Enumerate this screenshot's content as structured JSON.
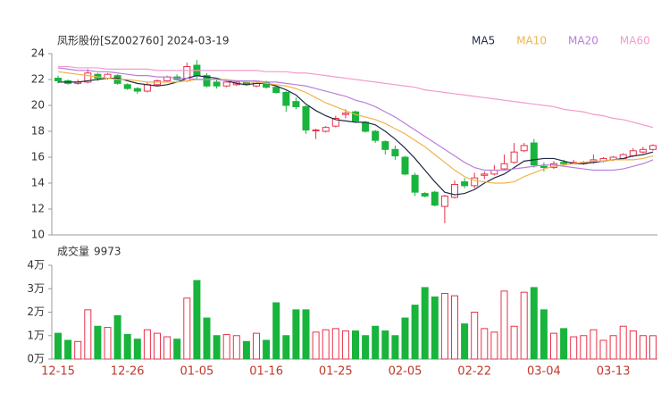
{
  "chart_data": {
    "type": "candlestick",
    "title": "凤形股份[SZ002760] 2024-03-19",
    "volume_label": "成交量",
    "categories": [
      "12-15",
      null,
      null,
      null,
      null,
      null,
      null,
      "12-26",
      null,
      null,
      null,
      null,
      null,
      null,
      "01-05",
      null,
      null,
      null,
      null,
      null,
      null,
      "01-16",
      null,
      null,
      null,
      null,
      null,
      null,
      "01-25",
      null,
      null,
      null,
      null,
      null,
      null,
      "02-05",
      null,
      null,
      null,
      null,
      null,
      null,
      "02-22",
      null,
      null,
      null,
      null,
      null,
      null,
      "03-04",
      null,
      null,
      null,
      null,
      null,
      null,
      "03-13",
      null,
      null,
      null,
      null
    ],
    "open": [
      22.1,
      21.9,
      21.7,
      21.8,
      22.4,
      22.1,
      22.3,
      21.6,
      21.3,
      21.1,
      21.6,
      21.9,
      22.2,
      21.9,
      23.1,
      22.3,
      21.8,
      21.5,
      21.6,
      21.8,
      21.5,
      21.8,
      21.4,
      21.0,
      20.3,
      19.9,
      18.1,
      18.0,
      18.4,
      19.3,
      19.5,
      18.7,
      18.0,
      17.2,
      16.6,
      16.0,
      14.6,
      13.2,
      13.3,
      12.2,
      12.9,
      14.1,
      13.8,
      14.6,
      14.7,
      15.1,
      15.6,
      16.5,
      17.1,
      15.3,
      15.2,
      15.6,
      15.6,
      15.5,
      15.6,
      15.7,
      15.8,
      15.9,
      16.1,
      16.4,
      16.6
    ],
    "high": [
      22.3,
      22.0,
      22.0,
      22.8,
      22.5,
      22.5,
      22.4,
      21.7,
      21.4,
      21.8,
      22.0,
      22.3,
      22.4,
      23.3,
      23.5,
      22.5,
      22.0,
      21.9,
      21.9,
      21.9,
      21.9,
      21.9,
      21.5,
      21.1,
      20.6,
      20.0,
      18.2,
      18.4,
      19.2,
      19.7,
      19.6,
      18.8,
      18.1,
      17.3,
      16.9,
      16.1,
      14.8,
      13.3,
      13.4,
      13.1,
      14.2,
      14.4,
      14.8,
      14.9,
      15.4,
      16.2,
      17.1,
      17.1,
      17.4,
      15.6,
      15.7,
      15.8,
      15.8,
      15.7,
      16.2,
      16.0,
      16.1,
      16.3,
      16.7,
      16.8,
      17.0
    ],
    "low": [
      21.7,
      21.6,
      21.6,
      21.7,
      21.9,
      22.0,
      21.6,
      21.2,
      20.9,
      21.0,
      21.5,
      21.8,
      21.9,
      21.8,
      22.0,
      21.4,
      21.3,
      21.4,
      21.5,
      21.5,
      21.4,
      21.3,
      20.9,
      19.5,
      19.7,
      17.8,
      17.4,
      17.9,
      18.3,
      19.0,
      18.7,
      17.9,
      17.1,
      16.2,
      15.8,
      14.6,
      13.0,
      12.9,
      12.2,
      10.9,
      12.8,
      13.6,
      13.6,
      14.3,
      14.6,
      15.0,
      15.5,
      16.4,
      15.2,
      14.9,
      15.1,
      15.3,
      15.5,
      15.4,
      15.5,
      15.6,
      15.7,
      15.8,
      16.0,
      16.3,
      16.5
    ],
    "close": [
      21.9,
      21.7,
      21.8,
      22.5,
      22.1,
      22.4,
      21.7,
      21.3,
      21.1,
      21.6,
      21.9,
      22.2,
      22.0,
      23.0,
      22.3,
      21.5,
      21.5,
      21.8,
      21.8,
      21.6,
      21.8,
      21.4,
      21.0,
      20.0,
      19.9,
      18.1,
      18.1,
      18.3,
      19.0,
      19.4,
      18.8,
      18.0,
      17.3,
      16.6,
      16.1,
      14.7,
      13.3,
      13.0,
      12.3,
      13.0,
      13.9,
      13.8,
      14.4,
      14.7,
      15.0,
      15.5,
      16.4,
      16.9,
      15.4,
      15.2,
      15.5,
      15.5,
      15.6,
      15.6,
      15.8,
      15.9,
      16.0,
      16.2,
      16.5,
      16.6,
      16.9
    ],
    "volume": [
      11000,
      8000,
      7500,
      21000,
      14000,
      13500,
      18500,
      10500,
      8500,
      12500,
      11000,
      9500,
      8500,
      26000,
      33500,
      17500,
      10000,
      10500,
      10000,
      7500,
      11000,
      8000,
      24000,
      10000,
      21000,
      21000,
      11500,
      12500,
      13000,
      12000,
      12000,
      10000,
      14000,
      12000,
      10000,
      17500,
      23000,
      30500,
      26500,
      28000,
      27000,
      15000,
      20000,
      13000,
      11500,
      29000,
      14000,
      28500,
      30500,
      21000,
      11000,
      13000,
      9500,
      10000,
      12500,
      8000,
      10000,
      14000,
      12000,
      10000,
      9973
    ],
    "series": [
      {
        "name": "MA5",
        "color": "#1f2a44",
        "values": [
          21.8,
          21.8,
          21.8,
          21.9,
          22.0,
          22.1,
          22.1,
          21.9,
          21.7,
          21.6,
          21.5,
          21.6,
          21.8,
          22.1,
          22.3,
          22.2,
          22.1,
          21.9,
          21.7,
          21.6,
          21.7,
          21.7,
          21.5,
          21.2,
          20.8,
          20.1,
          19.6,
          19.2,
          18.9,
          18.8,
          18.7,
          18.7,
          18.5,
          18.0,
          17.4,
          16.7,
          15.9,
          15.0,
          14.1,
          13.3,
          13.1,
          13.2,
          13.5,
          14.0,
          14.4,
          14.7,
          15.2,
          15.7,
          15.8,
          15.9,
          15.9,
          15.7,
          15.5,
          15.5,
          15.6,
          15.7,
          15.8,
          15.9,
          16.1,
          16.2,
          16.4
        ]
      },
      {
        "name": "MA10",
        "color": "#f2b24a",
        "values": [
          22.6,
          22.5,
          22.4,
          22.3,
          22.2,
          22.1,
          22.0,
          22.0,
          21.9,
          21.8,
          21.8,
          21.8,
          21.8,
          21.9,
          22.0,
          22.0,
          22.0,
          22.0,
          21.9,
          21.8,
          21.8,
          21.7,
          21.6,
          21.5,
          21.3,
          21.0,
          20.6,
          20.2,
          19.9,
          19.6,
          19.3,
          19.1,
          18.9,
          18.6,
          18.2,
          17.8,
          17.3,
          16.8,
          16.2,
          15.6,
          15.0,
          14.5,
          14.2,
          14.1,
          14.0,
          14.0,
          14.1,
          14.5,
          14.8,
          15.1,
          15.3,
          15.4,
          15.5,
          15.6,
          15.7,
          15.7,
          15.8,
          15.8,
          15.8,
          15.9,
          16.1
        ]
      },
      {
        "name": "MA20",
        "color": "#b97fdc",
        "values": [
          22.9,
          22.8,
          22.7,
          22.7,
          22.6,
          22.6,
          22.5,
          22.4,
          22.3,
          22.3,
          22.2,
          22.2,
          22.1,
          22.1,
          22.0,
          22.0,
          22.0,
          21.9,
          21.9,
          21.9,
          21.9,
          21.8,
          21.8,
          21.7,
          21.6,
          21.5,
          21.3,
          21.1,
          20.9,
          20.7,
          20.4,
          20.2,
          19.9,
          19.5,
          19.1,
          18.6,
          18.1,
          17.6,
          17.1,
          16.6,
          16.1,
          15.6,
          15.2,
          15.0,
          15.0,
          15.0,
          15.1,
          15.2,
          15.3,
          15.4,
          15.4,
          15.3,
          15.2,
          15.1,
          15.0,
          15.0,
          15.0,
          15.1,
          15.3,
          15.5,
          15.8
        ]
      },
      {
        "name": "MA60",
        "color": "#f19ccb",
        "values": [
          23.0,
          23.0,
          22.9,
          22.9,
          22.9,
          22.8,
          22.8,
          22.8,
          22.8,
          22.8,
          22.7,
          22.7,
          22.7,
          22.7,
          22.7,
          22.7,
          22.7,
          22.7,
          22.7,
          22.7,
          22.7,
          22.6,
          22.6,
          22.6,
          22.5,
          22.5,
          22.4,
          22.3,
          22.2,
          22.1,
          22.0,
          21.9,
          21.8,
          21.7,
          21.6,
          21.5,
          21.4,
          21.2,
          21.1,
          21.0,
          20.9,
          20.8,
          20.7,
          20.6,
          20.5,
          20.4,
          20.3,
          20.2,
          20.1,
          20.0,
          19.9,
          19.7,
          19.6,
          19.5,
          19.3,
          19.2,
          19.0,
          18.9,
          18.7,
          18.5,
          18.3
        ]
      }
    ],
    "ylim": [
      10,
      24
    ],
    "yticks": [
      10,
      12,
      14,
      16,
      18,
      20,
      22,
      24
    ],
    "volume_ylim": [
      0,
      40000
    ],
    "volume_yticks": [
      {
        "value": 0,
        "label": "0万"
      },
      {
        "value": 10000,
        "label": "1万"
      },
      {
        "value": 20000,
        "label": "2万"
      },
      {
        "value": 30000,
        "label": "3万"
      },
      {
        "value": 40000,
        "label": "4万"
      }
    ],
    "up_color": "#e8324a",
    "down_color": "#18b43c"
  }
}
